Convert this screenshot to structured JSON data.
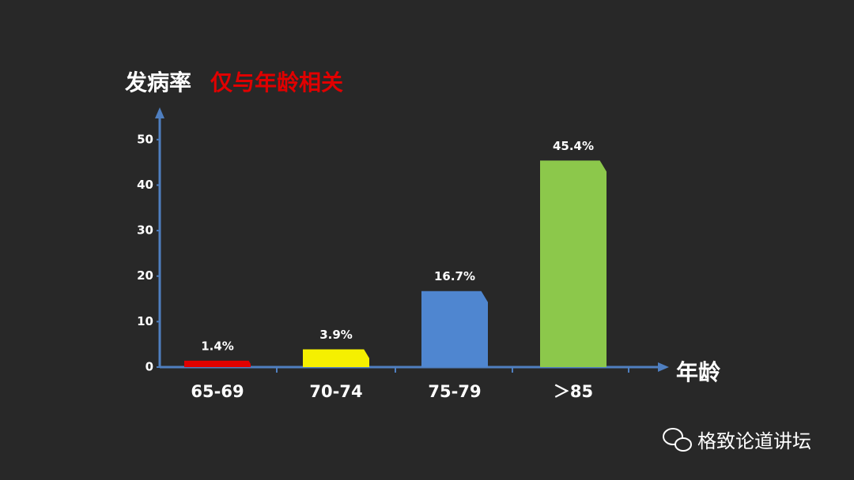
{
  "chart_data": {
    "type": "bar",
    "ylabel": "发病率",
    "title": "仅与年龄相关",
    "xlabel": "年龄",
    "categories": [
      "65-69",
      "70-74",
      "75-79",
      "＞85"
    ],
    "values": [
      1.4,
      3.9,
      16.7,
      45.4
    ],
    "value_labels": [
      "1.4%",
      "3.9%",
      "16.7%",
      "45.4%"
    ],
    "colors": [
      "#e00000",
      "#f5f000",
      "#4f86d0",
      "#8cc84b"
    ],
    "ylim": [
      0,
      55
    ],
    "yticks": [
      0,
      10,
      20,
      30,
      40,
      50
    ]
  },
  "watermark": "格致论道讲坛"
}
